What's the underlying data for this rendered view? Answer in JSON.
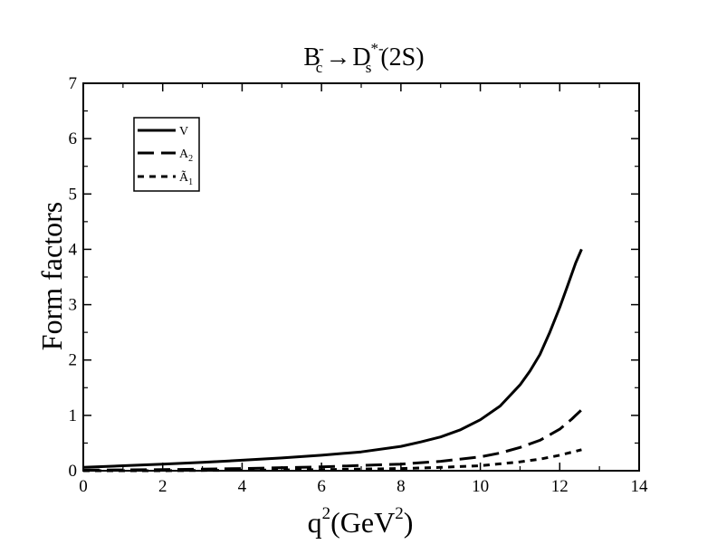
{
  "chart_data": {
    "type": "line",
    "title": {
      "main": "B",
      "main_sub": "c",
      "main_sup": "-",
      "arrow": "→",
      "target": "D",
      "target_sub": "s",
      "target_sup": "*-",
      "state": "(2S)"
    },
    "xlabel": {
      "var": "q",
      "var_sup": "2",
      "unit_open": "(GeV",
      "unit_sup": "2",
      "unit_close": ")"
    },
    "ylabel": "Form factors",
    "xlim": [
      0,
      14
    ],
    "ylim": [
      0,
      7
    ],
    "x_ticks": [
      "0",
      "2",
      "4",
      "6",
      "8",
      "10",
      "12",
      "14"
    ],
    "y_ticks": [
      "0",
      "1",
      "2",
      "3",
      "4",
      "5",
      "6",
      "7"
    ],
    "grid": false,
    "legend_position": "top-left",
    "series": [
      {
        "name": "V",
        "name_sub": "",
        "dash": "solid",
        "x": [
          0,
          1,
          2,
          3,
          4,
          5,
          6,
          7,
          8,
          8.5,
          9,
          9.5,
          10,
          10.5,
          11,
          11.25,
          11.5,
          11.75,
          12,
          12.2,
          12.4,
          12.55
        ],
        "y": [
          0.06,
          0.09,
          0.12,
          0.15,
          0.19,
          0.23,
          0.28,
          0.34,
          0.44,
          0.52,
          0.61,
          0.74,
          0.92,
          1.17,
          1.55,
          1.8,
          2.1,
          2.5,
          2.95,
          3.35,
          3.75,
          4.0
        ]
      },
      {
        "name": "A",
        "name_sub": "2",
        "dash": "long-dash",
        "x": [
          0,
          2,
          4,
          6,
          8,
          9,
          10,
          10.5,
          11,
          11.5,
          12,
          12.3,
          12.55
        ],
        "y": [
          0.01,
          0.02,
          0.04,
          0.07,
          0.12,
          0.17,
          0.25,
          0.32,
          0.42,
          0.55,
          0.75,
          0.93,
          1.1
        ]
      },
      {
        "name": "Ã",
        "name_sub": "1",
        "dash": "short-dash",
        "x": [
          0,
          2,
          4,
          6,
          8,
          9,
          10,
          11,
          11.5,
          12,
          12.55
        ],
        "y": [
          0.0,
          0.0,
          0.01,
          0.02,
          0.04,
          0.06,
          0.09,
          0.16,
          0.21,
          0.28,
          0.38
        ]
      }
    ]
  }
}
